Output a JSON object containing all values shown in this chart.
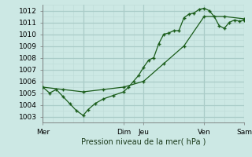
{
  "xlabel": "Pression niveau de la mer( hPa )",
  "ylim": [
    1002.5,
    1012.5
  ],
  "yticks": [
    1003,
    1004,
    1005,
    1006,
    1007,
    1008,
    1009,
    1010,
    1011,
    1012
  ],
  "xlim": [
    0,
    240
  ],
  "xtick_positions": [
    0,
    96,
    120,
    192,
    240
  ],
  "xtick_labels": [
    "Mer",
    "Dim",
    "Jeu",
    "Ven",
    "Sam"
  ],
  "bg_color": "#cce8e4",
  "grid_major_color": "#aaccc8",
  "grid_minor_color": "#bcdbd7",
  "line_color": "#1a5c1a",
  "line1_x": [
    0,
    8,
    16,
    24,
    32,
    40,
    48,
    54,
    62,
    72,
    84,
    96,
    102,
    108,
    114,
    120,
    126,
    132,
    138,
    144,
    150,
    156,
    162,
    168,
    174,
    180,
    186,
    192,
    198,
    204,
    210,
    216,
    222,
    228,
    234,
    240
  ],
  "line1_y": [
    1005.5,
    1005.0,
    1005.3,
    1004.7,
    1004.1,
    1003.5,
    1003.1,
    1003.6,
    1004.1,
    1004.5,
    1004.8,
    1005.1,
    1005.5,
    1006.0,
    1006.5,
    1007.2,
    1007.8,
    1008.0,
    1009.2,
    1010.0,
    1010.1,
    1010.3,
    1010.3,
    1011.4,
    1011.7,
    1011.8,
    1012.1,
    1012.2,
    1012.0,
    1011.5,
    1010.7,
    1010.5,
    1011.0,
    1011.2,
    1011.1,
    1011.2
  ],
  "line2_x": [
    0,
    24,
    48,
    72,
    96,
    120,
    144,
    168,
    192,
    216,
    240
  ],
  "line2_y": [
    1005.5,
    1005.3,
    1005.1,
    1005.3,
    1005.5,
    1006.0,
    1007.5,
    1009.0,
    1011.5,
    1011.5,
    1011.3
  ]
}
